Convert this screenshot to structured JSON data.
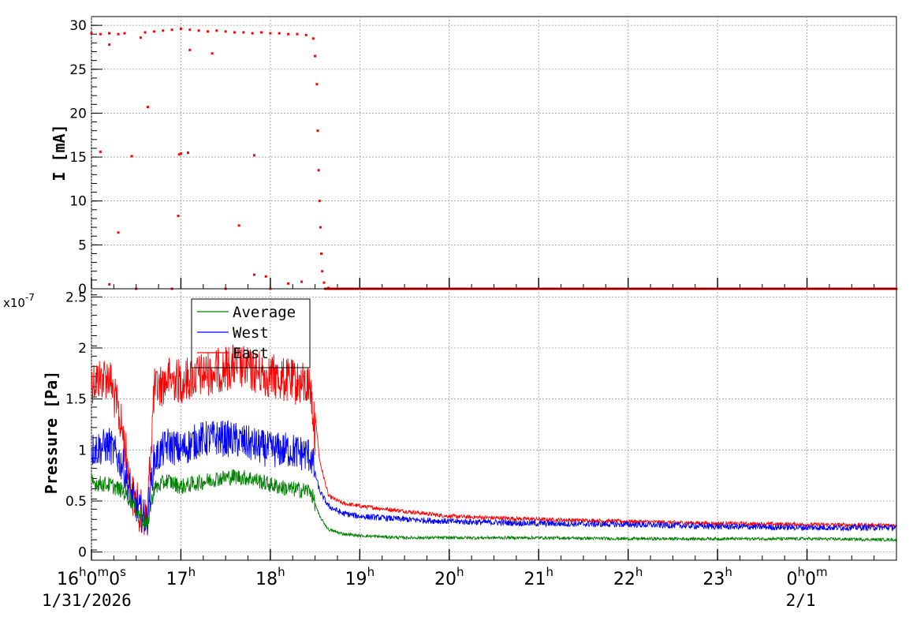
{
  "chart_data": [
    {
      "type": "scatter",
      "panel": "top",
      "ylabel": "I [mA]",
      "ylim": [
        0,
        31
      ],
      "yticks": [
        0,
        5,
        10,
        15,
        20,
        25,
        30
      ],
      "xlim_hours": [
        16.0,
        25.0
      ],
      "grid": true,
      "series": [
        {
          "color": "#ff0000",
          "points": [
            [
              16.0,
              29.1
            ],
            [
              16.1,
              29.0
            ],
            [
              16.2,
              29.1
            ],
            [
              16.3,
              29.0
            ],
            [
              16.37,
              29.1
            ],
            [
              16.55,
              28.6
            ],
            [
              16.6,
              29.2
            ],
            [
              16.7,
              29.3
            ],
            [
              16.8,
              29.4
            ],
            [
              16.9,
              29.5
            ],
            [
              17.0,
              29.6
            ],
            [
              17.1,
              29.5
            ],
            [
              17.2,
              29.4
            ],
            [
              17.3,
              29.3
            ],
            [
              17.4,
              29.4
            ],
            [
              17.5,
              29.3
            ],
            [
              17.6,
              29.2
            ],
            [
              17.7,
              29.2
            ],
            [
              17.8,
              29.1
            ],
            [
              17.9,
              29.2
            ],
            [
              18.0,
              29.1
            ],
            [
              18.1,
              29.1
            ],
            [
              18.2,
              29.0
            ],
            [
              18.3,
              29.0
            ],
            [
              18.4,
              28.9
            ],
            [
              18.48,
              28.5
            ],
            [
              18.5,
              26.5
            ],
            [
              18.52,
              23.3
            ],
            [
              18.53,
              18.0
            ],
            [
              18.54,
              13.5
            ],
            [
              18.55,
              10.0
            ],
            [
              18.56,
              7.0
            ],
            [
              18.57,
              4.0
            ],
            [
              18.58,
              2.0
            ],
            [
              18.6,
              0.7
            ],
            [
              18.65,
              0.1
            ],
            [
              18.8,
              0.0
            ],
            [
              19.5,
              0.0
            ],
            [
              20.5,
              0.0
            ],
            [
              21.5,
              0.0
            ],
            [
              22.5,
              0.0
            ],
            [
              23.5,
              0.0
            ],
            [
              24.5,
              0.0
            ],
            [
              25.0,
              0.0
            ],
            [
              16.1,
              15.6
            ],
            [
              16.2,
              29.1
            ],
            [
              16.3,
              6.4
            ],
            [
              16.45,
              15.1
            ],
            [
              16.63,
              20.7
            ],
            [
              16.97,
              8.3
            ],
            [
              16.98,
              15.3
            ],
            [
              17.0,
              15.4
            ],
            [
              17.08,
              15.5
            ],
            [
              17.65,
              7.2
            ],
            [
              17.82,
              15.2
            ],
            [
              16.2,
              27.8
            ],
            [
              17.35,
              26.8
            ],
            [
              17.1,
              27.2
            ],
            [
              16.2,
              0.5
            ],
            [
              17.82,
              1.6
            ],
            [
              17.95,
              1.4
            ],
            [
              18.2,
              0.6
            ],
            [
              18.35,
              0.8
            ],
            [
              16.5,
              0.0
            ],
            [
              16.9,
              0.0
            ],
            [
              17.5,
              0.0
            ],
            [
              18.0,
              0.0
            ]
          ]
        }
      ]
    },
    {
      "type": "line",
      "panel": "bottom",
      "ylabel": "Pressure [Pa]",
      "yscale_label": "x10^-7",
      "ylim": [
        -0.08,
        2.58
      ],
      "yticks": [
        0,
        0.5,
        1,
        1.5,
        2,
        2.5
      ],
      "yticks_labels": [
        "0",
        "0.5",
        "1",
        "1.5",
        "2",
        "2.5"
      ],
      "xlim_hours": [
        16.0,
        25.0
      ],
      "grid": true,
      "legend_position": "top-left",
      "series": [
        {
          "name": "Average",
          "color": "#008000",
          "points": [
            [
              16.0,
              0.68
            ],
            [
              16.2,
              0.66
            ],
            [
              16.35,
              0.6
            ],
            [
              16.45,
              0.5
            ],
            [
              16.55,
              0.35
            ],
            [
              16.62,
              0.25
            ],
            [
              16.7,
              0.62
            ],
            [
              16.85,
              0.7
            ],
            [
              17.0,
              0.64
            ],
            [
              17.2,
              0.68
            ],
            [
              17.4,
              0.72
            ],
            [
              17.6,
              0.74
            ],
            [
              17.8,
              0.72
            ],
            [
              18.0,
              0.66
            ],
            [
              18.2,
              0.62
            ],
            [
              18.45,
              0.6
            ],
            [
              18.55,
              0.35
            ],
            [
              18.65,
              0.22
            ],
            [
              18.8,
              0.18
            ],
            [
              19.0,
              0.16
            ],
            [
              19.5,
              0.14
            ],
            [
              20.0,
              0.14
            ],
            [
              21.0,
              0.14
            ],
            [
              22.0,
              0.13
            ],
            [
              23.0,
              0.13
            ],
            [
              24.0,
              0.13
            ],
            [
              25.0,
              0.12
            ]
          ]
        },
        {
          "name": "West",
          "color": "#0000ff",
          "points": [
            [
              16.0,
              1.0
            ],
            [
              16.2,
              1.05
            ],
            [
              16.35,
              0.85
            ],
            [
              16.45,
              0.55
            ],
            [
              16.55,
              0.38
            ],
            [
              16.62,
              0.3
            ],
            [
              16.7,
              0.9
            ],
            [
              16.85,
              1.05
            ],
            [
              17.0,
              1.0
            ],
            [
              17.2,
              1.1
            ],
            [
              17.4,
              1.12
            ],
            [
              17.6,
              1.1
            ],
            [
              17.8,
              1.05
            ],
            [
              18.0,
              1.0
            ],
            [
              18.2,
              1.0
            ],
            [
              18.45,
              0.95
            ],
            [
              18.55,
              0.6
            ],
            [
              18.65,
              0.45
            ],
            [
              18.8,
              0.38
            ],
            [
              19.0,
              0.35
            ],
            [
              19.5,
              0.32
            ],
            [
              20.0,
              0.3
            ],
            [
              21.0,
              0.28
            ],
            [
              22.0,
              0.27
            ],
            [
              23.0,
              0.25
            ],
            [
              24.0,
              0.24
            ],
            [
              25.0,
              0.24
            ]
          ]
        },
        {
          "name": "East",
          "color": "#ff0000",
          "points": [
            [
              16.0,
              1.9
            ],
            [
              16.2,
              1.95
            ],
            [
              16.35,
              1.4
            ],
            [
              16.45,
              0.8
            ],
            [
              16.55,
              0.62
            ],
            [
              16.62,
              0.55
            ],
            [
              16.7,
              1.8
            ],
            [
              16.85,
              1.92
            ],
            [
              17.0,
              1.9
            ],
            [
              17.2,
              1.95
            ],
            [
              17.4,
              2.0
            ],
            [
              17.6,
              2.05
            ],
            [
              17.8,
              2.0
            ],
            [
              18.0,
              1.95
            ],
            [
              18.2,
              1.9
            ],
            [
              18.45,
              1.85
            ],
            [
              18.55,
              0.9
            ],
            [
              18.65,
              0.55
            ],
            [
              18.8,
              0.48
            ],
            [
              19.0,
              0.45
            ],
            [
              19.5,
              0.4
            ],
            [
              20.0,
              0.35
            ],
            [
              21.0,
              0.32
            ],
            [
              22.0,
              0.3
            ],
            [
              23.0,
              0.28
            ],
            [
              24.0,
              0.27
            ],
            [
              25.0,
              0.26
            ]
          ]
        }
      ]
    }
  ],
  "x_axis": {
    "ticks": [
      {
        "hour": 16,
        "main": "16",
        "sup_h": "h",
        "mid": "0",
        "sup_m": "m",
        "end": "0",
        "sup_s": "s"
      },
      {
        "hour": 17,
        "main": "17",
        "sup_h": "h"
      },
      {
        "hour": 18,
        "main": "18",
        "sup_h": "h"
      },
      {
        "hour": 19,
        "main": "19",
        "sup_h": "h"
      },
      {
        "hour": 20,
        "main": "20",
        "sup_h": "h"
      },
      {
        "hour": 21,
        "main": "21",
        "sup_h": "h"
      },
      {
        "hour": 22,
        "main": "22",
        "sup_h": "h"
      },
      {
        "hour": 23,
        "main": "23",
        "sup_h": "h"
      },
      {
        "hour": 24,
        "main": "0",
        "sup_h": "h",
        "mid": "0",
        "sup_m": "m"
      }
    ],
    "date_left": "1/31/2026",
    "date_right": "2/1"
  }
}
